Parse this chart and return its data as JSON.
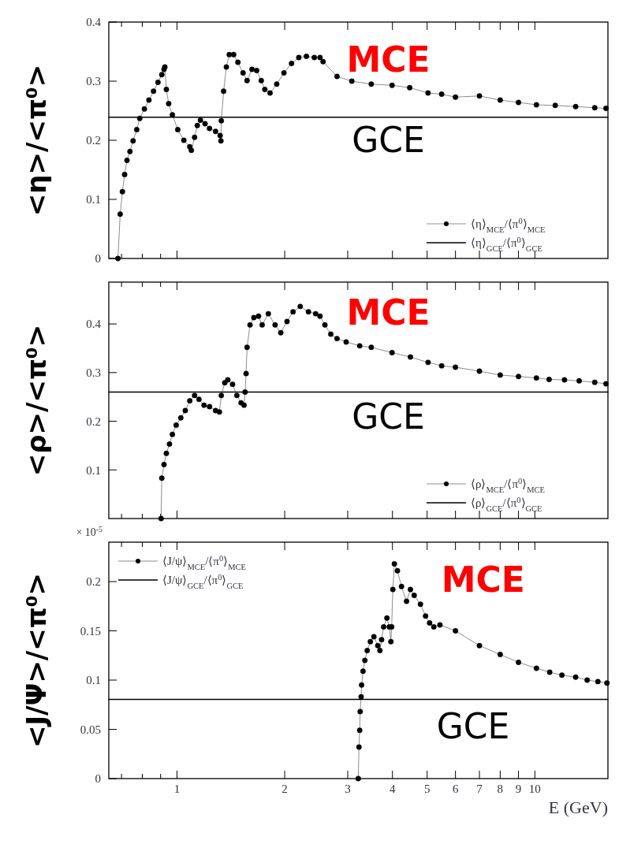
{
  "chart_data": [
    {
      "type": "line",
      "ylabel": "<η>/<π⁰>",
      "xlim": [
        0.645,
        16
      ],
      "ylim": [
        0,
        0.4
      ],
      "log": "x",
      "tick_labels": "y",
      "legend": "bottom right",
      "marker": "circle",
      "xticks": [
        {
          "value": 0.7,
          "label": null
        },
        {
          "value": 0.8,
          "label": null
        },
        {
          "value": 0.9,
          "label": null
        },
        1,
        2,
        3,
        4,
        5,
        6,
        7,
        8,
        9,
        10
      ],
      "yticks": [
        0,
        0.1,
        0.2,
        0.3,
        0.4
      ],
      "annotations": [
        "MCE",
        "GCE"
      ],
      "series": [
        {
          "name": "⟨η⟩$_{MCE}$/⟨π$^{0}$⟩$_{MCE}$",
          "color": "#000000",
          "x": [
            0.684,
            0.694,
            0.704,
            0.714,
            0.725,
            0.739,
            0.754,
            0.772,
            0.787,
            0.811,
            0.835,
            0.86,
            0.885,
            0.907,
            0.92,
            0.925,
            0.934,
            0.948,
            0.971,
            1.005,
            1.045,
            1.086,
            1.097,
            1.12,
            1.14,
            1.163,
            1.198,
            1.233,
            1.282,
            1.32,
            1.327,
            1.33,
            1.35,
            1.374,
            1.4,
            1.44,
            1.48,
            1.53,
            1.57,
            1.62,
            1.67,
            1.72,
            1.76,
            1.82,
            1.9,
            1.99,
            2.09,
            2.19,
            2.3,
            2.42,
            2.51,
            2.56,
            2.8,
            3.08,
            3.49,
            3.99,
            4.47,
            5.03,
            5.49,
            6.0,
            7.0,
            8.0,
            9.0,
            10.1,
            11.4,
            13.0,
            14.7,
            15.8
          ],
          "values": [
            0,
            0.075,
            0.113,
            0.142,
            0.166,
            0.181,
            0.199,
            0.218,
            0.237,
            0.253,
            0.268,
            0.283,
            0.298,
            0.311,
            0.32,
            0.324,
            0.286,
            0.262,
            0.243,
            0.218,
            0.2,
            0.189,
            0.183,
            0.205,
            0.225,
            0.234,
            0.228,
            0.22,
            0.215,
            0.208,
            0.199,
            0.233,
            0.283,
            0.324,
            0.345,
            0.345,
            0.332,
            0.314,
            0.301,
            0.32,
            0.318,
            0.301,
            0.286,
            0.28,
            0.295,
            0.314,
            0.33,
            0.34,
            0.342,
            0.34,
            0.34,
            0.333,
            0.308,
            0.3,
            0.295,
            0.293,
            0.289,
            0.28,
            0.278,
            0.273,
            0.275,
            0.268,
            0.264,
            0.26,
            0.259,
            0.257,
            0.255,
            0.254
          ]
        },
        {
          "name": "⟨η⟩$_{GCE}$/⟨π$^{0}$⟩$_{GCE}$",
          "color": "#000000",
          "marker": "none",
          "x": [
            0.645,
            16
          ],
          "values": [
            0.239,
            0.239
          ]
        }
      ]
    },
    {
      "type": "line",
      "ylabel": "<ρ>/<π⁰>",
      "xlim": [
        0.645,
        16
      ],
      "ylim": [
        0,
        0.486
      ],
      "log": "x",
      "tick_labels": "y",
      "legend": "bottom right",
      "marker": "circle",
      "xticks": [
        {
          "value": 0.7,
          "label": null
        },
        {
          "value": 0.8,
          "label": null
        },
        {
          "value": 0.9,
          "label": null
        },
        1,
        2,
        3,
        4,
        5,
        6,
        7,
        8,
        9,
        10
      ],
      "yticks": [
        0.1,
        0.2,
        0.3,
        0.4
      ],
      "annotations": [
        "MCE",
        "GCE"
      ],
      "series": [
        {
          "name": "⟨ρ⟩$_{MCE}$/⟨π$^{0}$⟩$_{MCE}$",
          "color": "#000000",
          "x": [
            0.903,
            0.907,
            0.92,
            0.934,
            0.953,
            0.971,
            0.995,
            1.025,
            1.055,
            1.086,
            1.12,
            1.152,
            1.19,
            1.233,
            1.282,
            1.314,
            1.33,
            1.36,
            1.387,
            1.43,
            1.47,
            1.51,
            1.54,
            1.55,
            1.56,
            1.57,
            1.6,
            1.64,
            1.69,
            1.73,
            1.8,
            1.88,
            1.95,
            2.03,
            2.11,
            2.21,
            2.33,
            2.44,
            2.51,
            2.59,
            2.69,
            2.8,
            2.97,
            3.24,
            3.49,
            3.99,
            4.49,
            5.03,
            5.49,
            6.0,
            7.0,
            8.0,
            9.0,
            10.1,
            10.96,
            12.1,
            13.3,
            14.7,
            15.8
          ],
          "values": [
            0,
            0.083,
            0.111,
            0.134,
            0.153,
            0.173,
            0.192,
            0.207,
            0.222,
            0.242,
            0.253,
            0.245,
            0.233,
            0.23,
            0.222,
            0.219,
            0.253,
            0.279,
            0.285,
            0.276,
            0.253,
            0.238,
            0.233,
            0.26,
            0.298,
            0.352,
            0.398,
            0.413,
            0.416,
            0.398,
            0.421,
            0.398,
            0.382,
            0.405,
            0.425,
            0.436,
            0.425,
            0.421,
            0.416,
            0.398,
            0.379,
            0.37,
            0.363,
            0.355,
            0.352,
            0.341,
            0.332,
            0.321,
            0.314,
            0.311,
            0.303,
            0.295,
            0.292,
            0.289,
            0.286,
            0.285,
            0.283,
            0.28,
            0.277
          ]
        },
        {
          "name": "⟨ρ⟩$_{GCE}$/⟨π$^{0}$⟩$_{GCE}$",
          "color": "#000000",
          "marker": "none",
          "x": [
            0.645,
            16
          ],
          "values": [
            0.26,
            0.26
          ]
        }
      ]
    },
    {
      "type": "line",
      "ylabel": "<J/Ψ>/<π⁰>",
      "xlabel": "E (GeV)",
      "xlim": [
        0.645,
        16
      ],
      "ylim": [
        0,
        0.24
      ],
      "log": "x",
      "legend": "top left",
      "marker": "circle",
      "xticks": [
        {
          "value": 0.7,
          "label": null
        },
        {
          "value": 0.8,
          "label": null
        },
        {
          "value": 0.9,
          "label": null
        },
        1,
        2,
        3,
        4,
        5,
        6,
        7,
        8,
        9,
        10
      ],
      "yticks": [
        0,
        0.05,
        0.1,
        0.15,
        0.2
      ],
      "annotations": [
        "MCE",
        "GCE",
        "× 10$^{-5}$"
      ],
      "series": [
        {
          "name": "⟨J/ψ⟩$_{MCE}$/⟨π$^{0}$⟩$_{MCE}$",
          "color": "#000000",
          "x": [
            3.21,
            3.225,
            3.24,
            3.25,
            3.27,
            3.28,
            3.31,
            3.35,
            3.4,
            3.47,
            3.55,
            3.64,
            3.69,
            3.73,
            3.78,
            3.86,
            3.92,
            3.96,
            3.98,
            4.01,
            4.05,
            4.13,
            4.24,
            4.38,
            4.49,
            4.6,
            4.79,
            4.95,
            5.08,
            5.22,
            5.43,
            6.0,
            7.0,
            8.0,
            9.0,
            10.1,
            11.0,
            11.9,
            13.0,
            14.0,
            15.0,
            15.9
          ],
          "values": [
            0,
            0.032,
            0.049,
            0.068,
            0.083,
            0.095,
            0.109,
            0.12,
            0.13,
            0.139,
            0.144,
            0.135,
            0.13,
            0.141,
            0.154,
            0.163,
            0.154,
            0.139,
            0.154,
            0.192,
            0.218,
            0.211,
            0.195,
            0.18,
            0.192,
            0.186,
            0.177,
            0.165,
            0.158,
            0.154,
            0.156,
            0.15,
            0.135,
            0.126,
            0.118,
            0.112,
            0.108,
            0.105,
            0.103,
            0.1,
            0.0985,
            0.097
          ]
        },
        {
          "name": "⟨J/ψ⟩$_{GCE}$/⟨π$^{0}$⟩$_{GCE}$",
          "color": "#000000",
          "marker": "none",
          "x": [
            0.645,
            16
          ],
          "values": [
            0.0805,
            0.0805
          ]
        }
      ]
    }
  ]
}
